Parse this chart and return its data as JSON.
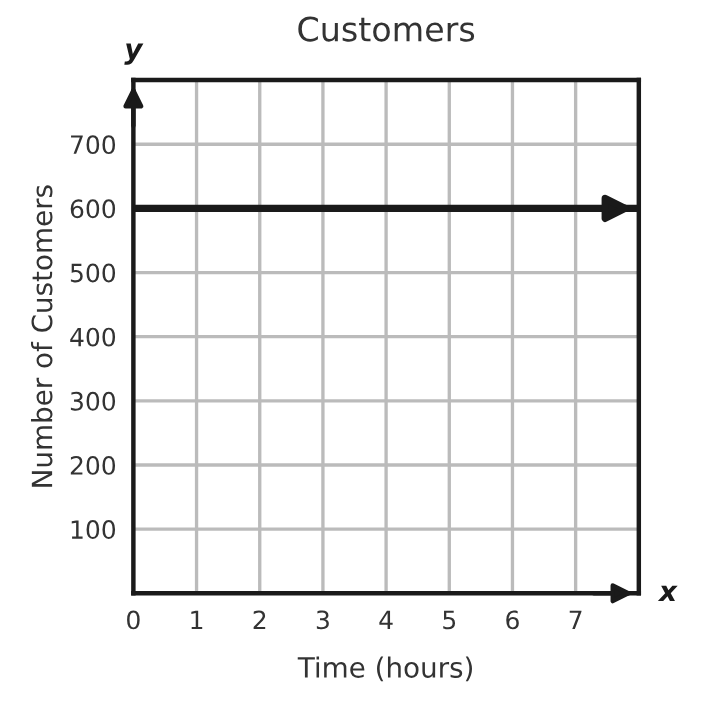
{
  "chart_data": {
    "type": "line",
    "title": "Customers",
    "xlabel": "Time (hours)",
    "ylabel": "Number of Customers",
    "x": [
      0,
      8
    ],
    "series": [
      {
        "color": "#1a1a1a",
        "values": [
          600,
          600
        ]
      }
    ],
    "xlim": [
      0,
      8
    ],
    "ylim": [
      0,
      800
    ],
    "xticks": [
      0,
      1,
      2,
      3,
      4,
      5,
      6,
      7,
      {
        "value": 8,
        "label": null
      }
    ],
    "yticks": [
      {
        "value": 0,
        "label": null
      },
      100,
      200,
      300,
      400,
      500,
      600,
      700,
      {
        "value": 800,
        "label": null
      }
    ],
    "grid": true,
    "marker": "none",
    "line_style": "solid",
    "annotations": [
      "x",
      "y"
    ]
  }
}
